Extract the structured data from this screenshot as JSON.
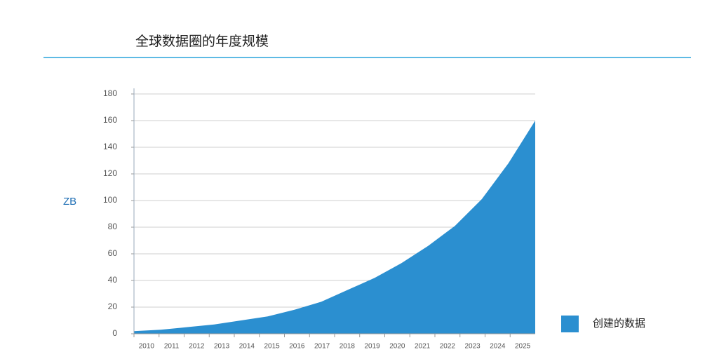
{
  "chart_data": {
    "type": "area",
    "title": "全球数据圈的年度规模",
    "y_label": "ZB",
    "categories": [
      "2010",
      "2011",
      "2012",
      "2013",
      "2014",
      "2015",
      "2016",
      "2017",
      "2018",
      "2019",
      "2020",
      "2021",
      "2022",
      "2023",
      "2024",
      "2025"
    ],
    "series": [
      {
        "name": "创建的数据",
        "color": "#2b8fd0",
        "values": [
          2,
          3,
          5,
          7,
          10,
          13,
          18,
          24,
          33,
          42,
          53,
          66,
          81,
          101,
          128,
          160
        ]
      }
    ],
    "ylim": [
      0,
      180
    ],
    "yticks": [
      0,
      20,
      40,
      60,
      80,
      100,
      120,
      140,
      160,
      180
    ],
    "grid": true,
    "legend": "right"
  }
}
